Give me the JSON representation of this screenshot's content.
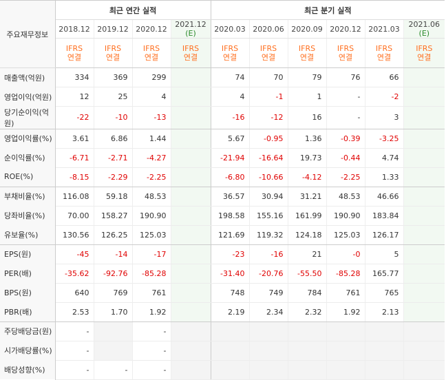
{
  "corner_label": "주요재무정보",
  "groups": [
    {
      "label": "최근 연간 실적"
    },
    {
      "label": "최근 분기 실적"
    }
  ],
  "periods": [
    {
      "label": "2018.12"
    },
    {
      "label": "2019.12"
    },
    {
      "label": "2020.12"
    },
    {
      "label": "2021.12",
      "est": "(E)"
    },
    {
      "label": "2020.03"
    },
    {
      "label": "2020.06"
    },
    {
      "label": "2020.09"
    },
    {
      "label": "2020.12"
    },
    {
      "label": "2021.03"
    },
    {
      "label": "2021.06",
      "est": "(E)"
    }
  ],
  "ifrs": {
    "line1": "IFRS",
    "line2": "연결"
  },
  "rows": [
    {
      "label": "매출액(억원)",
      "values": [
        "334",
        "369",
        "299",
        "",
        "74",
        "70",
        "79",
        "76",
        "66",
        ""
      ]
    },
    {
      "label": "영업이익(억원)",
      "values": [
        "12",
        "25",
        "4",
        "",
        "4",
        "-1",
        "1",
        "-",
        "-2",
        ""
      ]
    },
    {
      "label": "당기순이익(억원)",
      "values": [
        "-22",
        "-10",
        "-13",
        "",
        "-16",
        "-12",
        "16",
        "-",
        "3",
        ""
      ]
    },
    {
      "label": "영업이익률(%)",
      "values": [
        "3.61",
        "6.86",
        "1.44",
        "",
        "5.67",
        "-0.95",
        "1.36",
        "-0.39",
        "-3.25",
        ""
      ]
    },
    {
      "label": "순이익률(%)",
      "values": [
        "-6.71",
        "-2.71",
        "-4.27",
        "",
        "-21.94",
        "-16.64",
        "19.73",
        "-0.44",
        "4.74",
        ""
      ]
    },
    {
      "label": "ROE(%)",
      "values": [
        "-8.15",
        "-2.29",
        "-2.25",
        "",
        "-6.80",
        "-10.66",
        "-4.12",
        "-2.25",
        "1.33",
        ""
      ]
    },
    {
      "label": "부채비율(%)",
      "values": [
        "116.08",
        "59.18",
        "48.53",
        "",
        "36.57",
        "30.94",
        "31.21",
        "48.53",
        "46.66",
        ""
      ]
    },
    {
      "label": "당좌비율(%)",
      "values": [
        "70.00",
        "158.27",
        "190.90",
        "",
        "198.58",
        "155.16",
        "161.99",
        "190.90",
        "183.84",
        ""
      ]
    },
    {
      "label": "유보율(%)",
      "values": [
        "130.56",
        "126.25",
        "125.03",
        "",
        "121.69",
        "119.32",
        "124.18",
        "125.03",
        "126.17",
        ""
      ]
    },
    {
      "label": "EPS(원)",
      "values": [
        "-45",
        "-14",
        "-17",
        "",
        "-23",
        "-16",
        "21",
        "-0",
        "5",
        ""
      ]
    },
    {
      "label": "PER(배)",
      "values": [
        "-35.62",
        "-92.76",
        "-85.28",
        "",
        "-31.40",
        "-20.76",
        "-55.50",
        "-85.28",
        "165.77",
        ""
      ]
    },
    {
      "label": "BPS(원)",
      "values": [
        "640",
        "769",
        "761",
        "",
        "748",
        "749",
        "784",
        "761",
        "765",
        ""
      ]
    },
    {
      "label": "PBR(배)",
      "values": [
        "2.53",
        "1.70",
        "1.92",
        "",
        "2.19",
        "2.34",
        "2.32",
        "1.92",
        "2.13",
        ""
      ]
    },
    {
      "label": "주당배당금(원)",
      "values": [
        "-",
        "",
        "-",
        "",
        "",
        "",
        "",
        "",
        "",
        ""
      ]
    },
    {
      "label": "시가배당률(%)",
      "values": [
        "-",
        "",
        "-",
        "",
        "",
        "",
        "",
        "",
        "",
        ""
      ]
    },
    {
      "label": "배당성향(%)",
      "values": [
        "-",
        "-",
        "-",
        "",
        "",
        "",
        "",
        "",
        "",
        ""
      ]
    }
  ]
}
